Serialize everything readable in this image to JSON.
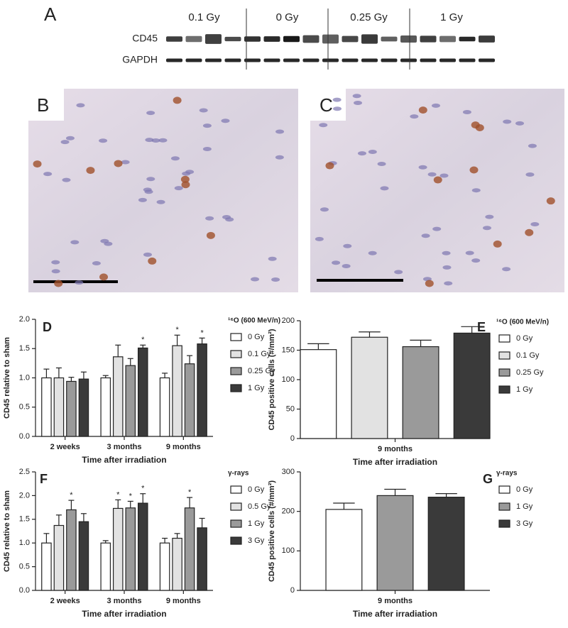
{
  "figure": {
    "panel_labels": [
      "A",
      "B",
      "C"
    ],
    "blot": {
      "doses": [
        "0.1 Gy",
        "0 Gy",
        "0.25 Gy",
        "1 Gy"
      ],
      "proteins": [
        "CD45",
        "GAPDH"
      ]
    }
  },
  "chart_data": [
    {
      "type": "bar",
      "panel_label": "D",
      "y_label": "CD45 relative to sham",
      "x_label": "Time after irradiation",
      "legend_title": "¹⁶O (600 MeV/n)",
      "categories": [
        "2 weeks",
        "3 months",
        "9 months"
      ],
      "series": [
        {
          "name": "0 Gy",
          "color": "#ffffff",
          "values": [
            1.0,
            1.0,
            1.0
          ],
          "errors": [
            0.15,
            0.04,
            0.08
          ],
          "markers": [
            null,
            null,
            null
          ]
        },
        {
          "name": "0.1 Gy",
          "color": "#e2e2e2",
          "values": [
            1.0,
            1.36,
            1.55
          ],
          "errors": [
            0.17,
            0.2,
            0.18
          ],
          "markers": [
            null,
            null,
            "*"
          ]
        },
        {
          "name": "0.25 Gy",
          "color": "#9a9a9a",
          "values": [
            0.94,
            1.21,
            1.24
          ],
          "errors": [
            0.07,
            0.12,
            0.14
          ],
          "markers": [
            null,
            null,
            null
          ]
        },
        {
          "name": "1 Gy",
          "color": "#3a3a3a",
          "values": [
            0.98,
            1.51,
            1.58
          ],
          "errors": [
            0.12,
            0.05,
            0.1
          ],
          "markers": [
            null,
            "*",
            "*"
          ]
        }
      ],
      "ylim": [
        0,
        2
      ],
      "yticks": [
        {
          "value": 0,
          "label": "0.0"
        },
        0.5,
        {
          "value": 1,
          "label": "1.0"
        },
        1.5,
        {
          "value": 2,
          "label": "2.0"
        }
      ]
    },
    {
      "type": "bar",
      "panel_label": "E",
      "y_label": "CD45 positive cells (#/mm²)",
      "x_label": "Time after irradiation",
      "legend_title": "¹⁶O (600 MeV/n)",
      "categories": [
        "9 months"
      ],
      "series": [
        {
          "name": "0 Gy",
          "color": "#ffffff",
          "values": [
            151
          ],
          "errors": [
            10
          ],
          "markers": [
            null
          ]
        },
        {
          "name": "0.1 Gy",
          "color": "#e2e2e2",
          "values": [
            172
          ],
          "errors": [
            9
          ],
          "markers": [
            null
          ]
        },
        {
          "name": "0.25 Gy",
          "color": "#9a9a9a",
          "values": [
            156
          ],
          "errors": [
            11
          ],
          "markers": [
            null
          ]
        },
        {
          "name": "1 Gy",
          "color": "#3a3a3a",
          "values": [
            179
          ],
          "errors": [
            11
          ],
          "markers": [
            null
          ]
        }
      ],
      "ylim": [
        0,
        200
      ],
      "yticks": [
        0,
        50,
        100,
        150,
        200
      ]
    },
    {
      "type": "bar",
      "panel_label": "F",
      "y_label": "CD45 relative to sham",
      "x_label": "Time after irradiation",
      "legend_title": "γ-rays",
      "categories": [
        "2 weeks",
        "3 months",
        "9 months"
      ],
      "series": [
        {
          "name": "0 Gy",
          "color": "#ffffff",
          "values": [
            1.0,
            1.0,
            1.0
          ],
          "errors": [
            0.2,
            0.05,
            0.1
          ],
          "markers": [
            null,
            null,
            null
          ]
        },
        {
          "name": "0.5 Gy",
          "color": "#e2e2e2",
          "values": [
            1.37,
            1.73,
            1.1
          ],
          "errors": [
            0.22,
            0.18,
            0.1
          ],
          "markers": [
            null,
            "*",
            null
          ]
        },
        {
          "name": "1 Gy",
          "color": "#9a9a9a",
          "values": [
            1.7,
            1.74,
            1.74
          ],
          "errors": [
            0.2,
            0.14,
            0.22
          ],
          "markers": [
            "*",
            "*",
            "*"
          ]
        },
        {
          "name": "3 Gy",
          "color": "#3a3a3a",
          "values": [
            1.45,
            1.84,
            1.32
          ],
          "errors": [
            0.17,
            0.2,
            0.2
          ],
          "markers": [
            null,
            "*",
            null
          ]
        }
      ],
      "ylim": [
        0,
        2.5
      ],
      "yticks": [
        {
          "value": 0,
          "label": "0.0"
        },
        0.5,
        {
          "value": 1,
          "label": "1.0"
        },
        1.5,
        {
          "value": 2,
          "label": "2.0"
        },
        2.5
      ]
    },
    {
      "type": "bar",
      "panel_label": "G",
      "y_label": "CD45 positive cells (#/mm²)",
      "x_label": "Time after irradiation",
      "legend_title": "γ-rays",
      "categories": [
        "9 months"
      ],
      "series": [
        {
          "name": "0 Gy",
          "color": "#ffffff",
          "values": [
            205
          ],
          "errors": [
            16
          ],
          "markers": [
            null
          ]
        },
        {
          "name": "1 Gy",
          "color": "#9a9a9a",
          "values": [
            240
          ],
          "errors": [
            16
          ],
          "markers": [
            null
          ]
        },
        {
          "name": "3 Gy",
          "color": "#3a3a3a",
          "values": [
            236
          ],
          "errors": [
            9
          ],
          "markers": [
            null
          ]
        }
      ],
      "ylim": [
        0,
        300
      ],
      "yticks": [
        0,
        100,
        200,
        300
      ]
    }
  ]
}
